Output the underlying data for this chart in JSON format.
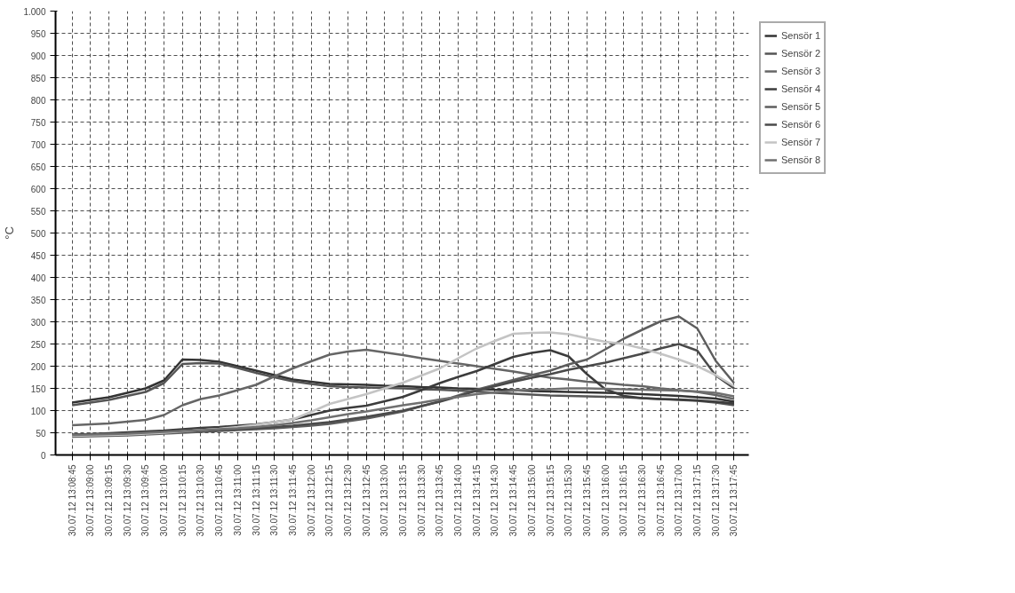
{
  "chart_data": {
    "type": "line",
    "ylabel": "°C",
    "categories": [
      "30.07.12 13:08:45",
      "30.07.12 13:09:00",
      "30.07.12 13:09:15",
      "30.07.12 13:09:30",
      "30.07.12 13:09:45",
      "30.07.12 13:10:00",
      "30.07.12 13:10:15",
      "30.07.12 13:10:30",
      "30.07.12 13:10:45",
      "30.07.12 13:11:00",
      "30.07.12 13:11:15",
      "30.07.12 13:11:30",
      "30.07.12 13:11:45",
      "30.07.12 13:12:00",
      "30.07.12 13:12:15",
      "30.07.12 13:12:30",
      "30.07.12 13:12:45",
      "30.07.12 13:13:00",
      "30.07.12 13:13:15",
      "30.07.12 13:13:30",
      "30.07.12 13:13:45",
      "30.07.12 13:14:00",
      "30.07.12 13:14:15",
      "30.07.12 13:14:30",
      "30.07.12 13:14:45",
      "30.07.12 13:15:00",
      "30.07.12 13:15:15",
      "30.07.12 13:15:30",
      "30.07.12 13:15:45",
      "30.07.12 13:16:00",
      "30.07.12 13:16:15",
      "30.07.12 13:16:30",
      "30.07.12 13:16:45",
      "30.07.12 13:17:00",
      "30.07.12 13:17:15",
      "30.07.12 13:17:30",
      "30.07.12 13:17:45"
    ],
    "ylim": [
      0,
      1000
    ],
    "yticks": [
      0,
      50,
      100,
      150,
      200,
      250,
      300,
      350,
      400,
      450,
      500,
      550,
      600,
      650,
      700,
      750,
      800,
      850,
      900,
      950,
      {
        "value": 1000,
        "label": "1.000"
      }
    ],
    "grid": true,
    "legend": "top right",
    "line_style": "solid",
    "series": [
      {
        "name": "Sensör 1",
        "color": "#333333",
        "values": [
          118,
          124,
          130,
          140,
          150,
          168,
          215,
          214,
          210,
          200,
          190,
          180,
          170,
          165,
          160,
          159,
          158,
          156,
          155,
          153,
          152,
          150,
          149,
          147,
          146,
          144,
          143,
          142,
          141,
          140,
          139,
          137,
          135,
          133,
          130,
          127,
          120
        ]
      },
      {
        "name": "Sensör 2",
        "color": "#555555",
        "values": [
          112,
          118,
          124,
          133,
          142,
          162,
          205,
          207,
          206,
          196,
          185,
          175,
          166,
          160,
          155,
          153,
          152,
          151,
          150,
          148,
          147,
          145,
          143,
          140,
          138,
          136,
          134,
          133,
          132,
          131,
          130,
          128,
          126,
          124,
          122,
          118,
          112
        ]
      },
      {
        "name": "Sensör 3",
        "color": "#666666",
        "values": [
          67,
          69,
          71,
          75,
          79,
          90,
          112,
          126,
          134,
          146,
          158,
          177,
          195,
          211,
          226,
          233,
          237,
          231,
          225,
          218,
          212,
          206,
          200,
          194,
          188,
          181,
          174,
          170,
          165,
          162,
          158,
          155,
          150,
          146,
          142,
          135,
          126
        ]
      },
      {
        "name": "Sensör 4",
        "color": "#3c3c3c",
        "values": [
          46,
          47,
          49,
          51,
          53,
          55,
          58,
          61,
          63,
          66,
          69,
          74,
          80,
          90,
          100,
          106,
          111,
          121,
          131,
          146,
          162,
          176,
          189,
          205,
          221,
          230,
          236,
          222,
          182,
          148,
          133,
          128,
          126,
          125,
          123,
          120,
          116
        ]
      },
      {
        "name": "Sensör 5",
        "color": "#5e5e5e",
        "values": [
          41,
          42,
          43,
          44,
          46,
          48,
          50,
          52,
          54,
          56,
          58,
          60,
          63,
          66,
          70,
          76,
          82,
          90,
          98,
          110,
          121,
          134,
          147,
          158,
          169,
          180,
          190,
          204,
          215,
          238,
          262,
          282,
          301,
          312,
          285,
          212,
          162
        ]
      },
      {
        "name": "Sensör 6",
        "color": "#4a4a4a",
        "values": [
          43,
          44,
          45,
          46,
          48,
          50,
          52,
          54,
          56,
          58,
          60,
          63,
          66,
          70,
          74,
          80,
          86,
          93,
          100,
          110,
          120,
          132,
          145,
          155,
          165,
          174,
          182,
          192,
          200,
          208,
          218,
          228,
          240,
          250,
          235,
          179,
          150
        ]
      },
      {
        "name": "Sensör 7",
        "color": "#c4c4c4",
        "values": [
          43,
          44,
          45,
          46,
          48,
          50,
          53,
          56,
          59,
          63,
          68,
          74,
          80,
          97,
          115,
          126,
          137,
          150,
          163,
          179,
          195,
          218,
          240,
          257,
          273,
          275,
          276,
          272,
          263,
          255,
          250,
          240,
          228,
          215,
          200,
          180,
          155
        ]
      },
      {
        "name": "Sensör 8",
        "color": "#707070",
        "values": [
          45,
          46,
          47,
          48,
          50,
          52,
          54,
          56,
          58,
          60,
          63,
          67,
          72,
          78,
          85,
          92,
          98,
          105,
          112,
          118,
          125,
          131,
          137,
          141,
          145,
          147,
          148,
          150,
          150,
          149,
          148,
          147,
          146,
          145,
          143,
          140,
          132
        ]
      }
    ]
  }
}
